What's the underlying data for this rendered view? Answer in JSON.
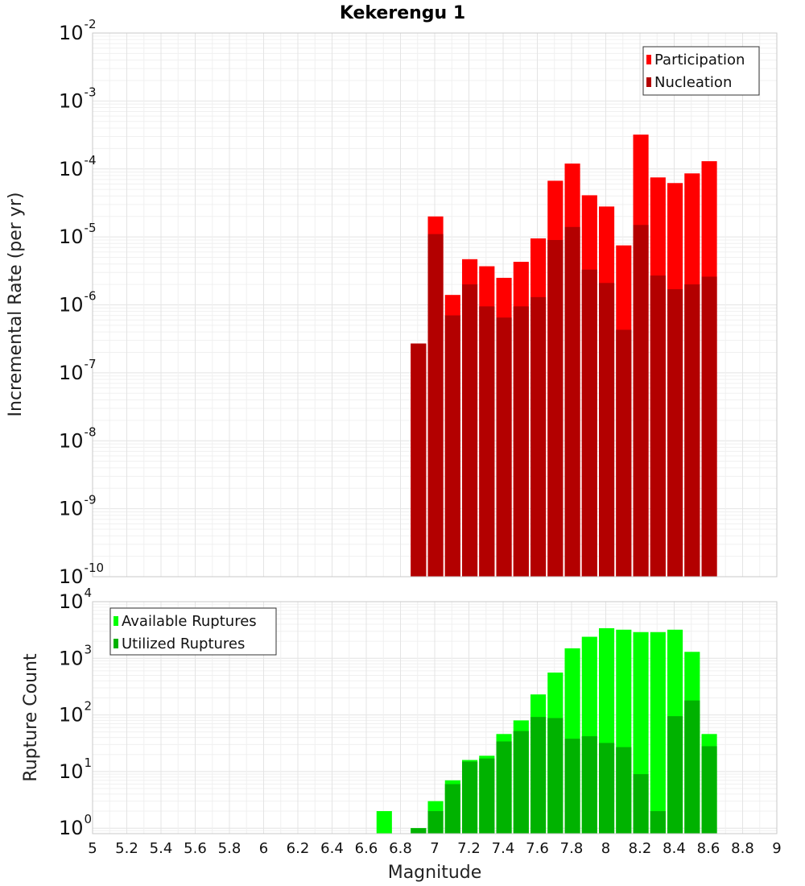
{
  "chart_data": [
    {
      "type": "bar",
      "title": "Kekerengu 1",
      "xlabel": "",
      "ylabel": "Incremental Rate (per yr)",
      "yscale": "log",
      "ylim": [
        1e-10,
        0.01
      ],
      "xlim": [
        5,
        9
      ],
      "grid": true,
      "legend_position": "top-right",
      "overlay": true,
      "x": [
        6.9,
        7.0,
        7.1,
        7.2,
        7.3,
        7.4,
        7.5,
        7.6,
        7.7,
        7.8,
        7.9,
        8.0,
        8.1,
        8.2,
        8.3,
        8.4,
        8.5,
        8.6
      ],
      "series": [
        {
          "name": "Participation",
          "color": "#ff0000",
          "values": [
            2.7e-07,
            2e-05,
            1.4e-06,
            4.7e-06,
            3.7e-06,
            2.5e-06,
            4.3e-06,
            9.5e-06,
            6.7e-05,
            0.00012,
            4.1e-05,
            2.8e-05,
            7.5e-06,
            0.00032,
            7.5e-05,
            6.2e-05,
            8.6e-05,
            0.00013
          ]
        },
        {
          "name": "Nucleation",
          "color": "#b30000",
          "values": [
            2.7e-07,
            1.1e-05,
            7e-07,
            2e-06,
            9.5e-07,
            6.5e-07,
            9.5e-07,
            1.3e-06,
            9e-06,
            1.4e-05,
            3.3e-06,
            2.1e-06,
            4.3e-07,
            1.5e-05,
            2.7e-06,
            1.7e-06,
            2e-06,
            2.6e-06
          ]
        }
      ],
      "yticks": [
        {
          "base": "10",
          "exp": "-2"
        },
        {
          "base": "10",
          "exp": "-3"
        },
        {
          "base": "10",
          "exp": "-4"
        },
        {
          "base": "10",
          "exp": "-5"
        },
        {
          "base": "10",
          "exp": "-6"
        },
        {
          "base": "10",
          "exp": "-7"
        },
        {
          "base": "10",
          "exp": "-8"
        },
        {
          "base": "10",
          "exp": "-9"
        },
        {
          "base": "10",
          "exp": "-10"
        }
      ]
    },
    {
      "type": "bar",
      "title": "",
      "xlabel": "Magnitude",
      "ylabel": "Rupture Count",
      "yscale": "log",
      "ylim": [
        0.8,
        10000
      ],
      "xlim": [
        5,
        9
      ],
      "grid": true,
      "legend_position": "top-left",
      "overlay": true,
      "x": [
        6.7,
        6.9,
        7.0,
        7.1,
        7.2,
        7.3,
        7.4,
        7.5,
        7.6,
        7.7,
        7.8,
        7.9,
        8.0,
        8.1,
        8.2,
        8.3,
        8.4,
        8.5,
        8.6
      ],
      "series": [
        {
          "name": "Available Ruptures",
          "color": "#00ff00",
          "values": [
            2,
            1,
            3,
            7,
            16,
            19,
            46,
            80,
            230,
            560,
            1500,
            2400,
            3400,
            3200,
            2900,
            2900,
            3200,
            1300,
            46
          ]
        },
        {
          "name": "Utilized Ruptures",
          "color": "#00b200",
          "values": [
            null,
            1,
            2,
            6,
            15,
            17,
            34,
            52,
            92,
            88,
            38,
            42,
            32,
            27,
            9,
            2,
            95,
            180,
            28
          ]
        }
      ],
      "yticks": [
        {
          "base": "10",
          "exp": "4"
        },
        {
          "base": "10",
          "exp": "3"
        },
        {
          "base": "10",
          "exp": "2"
        },
        {
          "base": "10",
          "exp": "1"
        },
        {
          "base": "10",
          "exp": "0"
        }
      ],
      "xticks": [
        "5",
        "5.2",
        "5.4",
        "5.6",
        "5.8",
        "6",
        "6.2",
        "6.4",
        "6.6",
        "6.8",
        "7",
        "7.2",
        "7.4",
        "7.6",
        "7.8",
        "8",
        "8.2",
        "8.4",
        "8.6",
        "8.8",
        "9"
      ]
    }
  ]
}
